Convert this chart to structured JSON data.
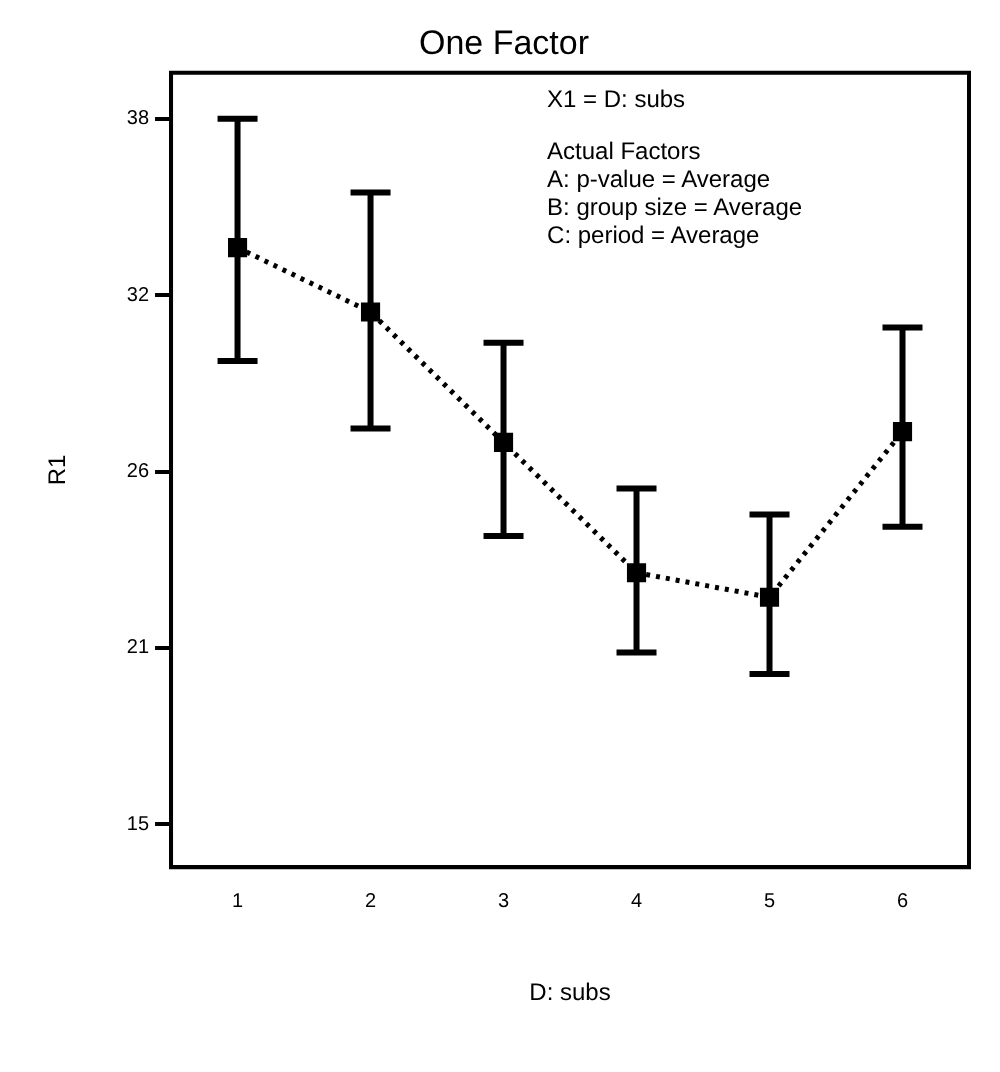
{
  "chart_data": {
    "type": "line",
    "title": "One Factor",
    "xlabel": "D: subs",
    "ylabel": "R1",
    "categories": [
      "1",
      "2",
      "3",
      "4",
      "5",
      "6"
    ],
    "series": [
      {
        "color": "#000000",
        "values": [
          33.8,
          31.7,
          27.45,
          23.2,
          22.4,
          27.8
        ],
        "errors": [
          [
            30.1,
            38
          ],
          [
            27.9,
            35.6
          ],
          [
            24.4,
            30.7
          ],
          [
            20.6,
            25.95
          ],
          [
            19.9,
            25.1
          ],
          [
            24.7,
            31.2
          ]
        ]
      }
    ],
    "ylim": [
      13.6,
      39.5
    ],
    "yticks": [
      {
        "value": 15,
        "label": "15"
      },
      {
        "value": 20.75,
        "label": "21"
      },
      {
        "value": 26.5,
        "label": "26"
      },
      {
        "value": 32.25,
        "label": "32"
      },
      {
        "value": 38,
        "label": "38"
      }
    ],
    "annotations": [
      "X1 = D: subs",
      "Actual Factors",
      "A: p-value = Average",
      "B: group size = Average",
      "C: period = Average"
    ],
    "marker": "square",
    "line_style": "dotted",
    "grid": false,
    "legend": false
  }
}
